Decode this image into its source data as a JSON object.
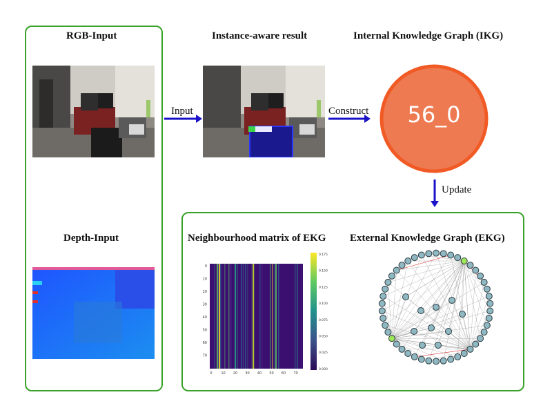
{
  "titles": {
    "rgb": "RGB-Input",
    "instance": "Instance-aware result",
    "ikg": "Internal Knowledge Graph (IKG)",
    "depth": "Depth-Input",
    "matrix": "Neighbourhood matrix of EKG",
    "ekg": "External Knowledge Graph (EKG)"
  },
  "edges": {
    "input": "Input",
    "construct": "Construct",
    "update": "Update"
  },
  "ikg_node": {
    "label": "56_0",
    "fill": "#ee7a52",
    "stroke": "#f15a24"
  },
  "matrix": {
    "y_ticks": [
      "0",
      "10",
      "20",
      "30",
      "40",
      "50",
      "60",
      "70"
    ],
    "x_ticks": [
      "0",
      "10",
      "20",
      "30",
      "40",
      "50",
      "60",
      "70"
    ],
    "colorbar_ticks": [
      "0.175",
      "0.150",
      "0.125",
      "0.100",
      "0.075",
      "0.050",
      "0.025",
      "0.000"
    ]
  },
  "colors": {
    "frame": "#3aa12a",
    "arrow": "#1a12c8",
    "node": "#8fb8c2",
    "highlight": "#9ee65a"
  }
}
